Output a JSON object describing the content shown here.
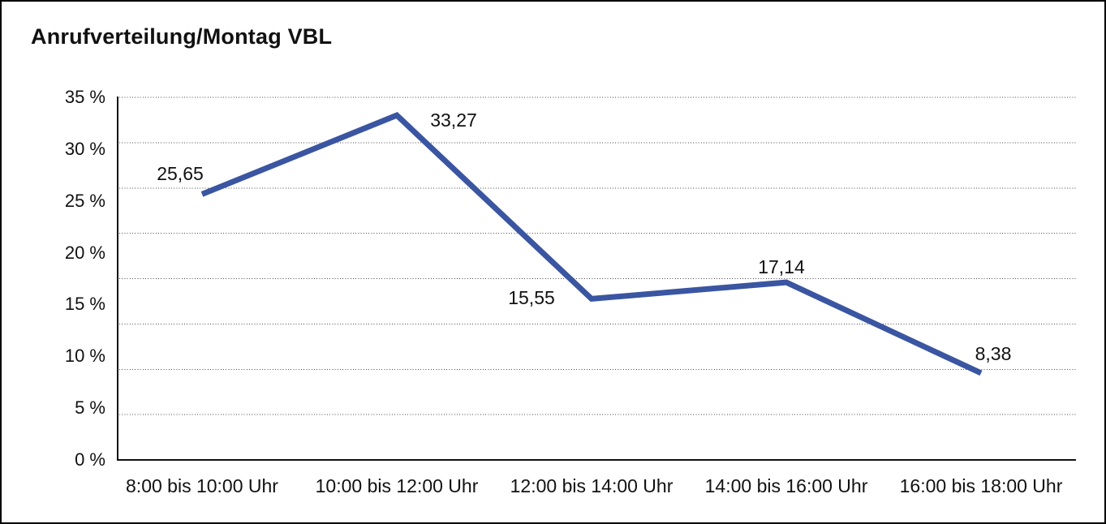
{
  "chart_data": {
    "type": "line",
    "title": "Anrufverteilung/Montag VBL",
    "categories": [
      "8:00 bis 10:00 Uhr",
      "10:00 bis 12:00 Uhr",
      "12:00 bis 14:00 Uhr",
      "14:00 bis 16:00 Uhr",
      "16:00 bis 18:00 Uhr"
    ],
    "values": [
      25.65,
      33.27,
      15.55,
      17.14,
      8.38
    ],
    "value_labels": [
      "25,65",
      "33,27",
      "15,55",
      "17,14",
      "8,38"
    ],
    "y_ticks": [
      {
        "label": "35 %",
        "value": 35
      },
      {
        "label": "30 %",
        "value": 30
      },
      {
        "label": "25 %",
        "value": 25
      },
      {
        "label": "20 %",
        "value": 20
      },
      {
        "label": "15 %",
        "value": 15
      },
      {
        "label": "10 %",
        "value": 10
      },
      {
        "label": "5 %",
        "value": 5
      },
      {
        "label": "0 %",
        "value": 0
      }
    ],
    "ylim": [
      0,
      35
    ],
    "xlabel": "",
    "ylabel": "",
    "legend": "none",
    "grid": {
      "horizontal_divisions": 8,
      "style": "dotted"
    },
    "line_color": "#3A55A1",
    "axis_color": "#111111",
    "gridline_color": "#4d4d4d",
    "background_color": "#ffffff"
  }
}
